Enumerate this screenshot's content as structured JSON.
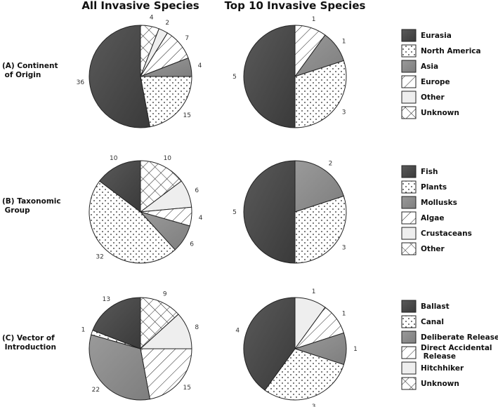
{
  "column_titles": {
    "left": "All Invasive Species",
    "right": "Top 10 Invasive Species"
  },
  "row_labels": [
    [
      "(A) Continent",
      " of Origin"
    ],
    [
      "(B) Taxonomic",
      " Group"
    ],
    [
      "(C) Vector of",
      " Introduction"
    ]
  ],
  "legends": [
    [
      {
        "label": "Eurasia",
        "pattern": "dark"
      },
      {
        "label": "North America",
        "pattern": "dots"
      },
      {
        "label": "Asia",
        "pattern": "gray"
      },
      {
        "label": "Europe",
        "pattern": "hatch"
      },
      {
        "label": "Other",
        "pattern": "light"
      },
      {
        "label": "Unknown",
        "pattern": "cross"
      }
    ],
    [
      {
        "label": "Fish",
        "pattern": "dark"
      },
      {
        "label": "Plants",
        "pattern": "dots"
      },
      {
        "label": "Mollusks",
        "pattern": "gray"
      },
      {
        "label": "Algae",
        "pattern": "hatch"
      },
      {
        "label": "Crustaceans",
        "pattern": "light"
      },
      {
        "label": "Other",
        "pattern": "cross"
      }
    ],
    [
      {
        "label": "Ballast",
        "pattern": "dark"
      },
      {
        "label": "Canal",
        "pattern": "dots"
      },
      {
        "label": "Deliberate Release",
        "pattern": "gray"
      },
      {
        "label": [
          "Direct Accidental",
          " Release"
        ],
        "pattern": "hatch"
      },
      {
        "label": "Hitchhiker",
        "pattern": "light"
      },
      {
        "label": "Unknown",
        "pattern": "cross"
      }
    ]
  ],
  "chart_data": [
    {
      "type": "pie",
      "title": "All Invasive Species",
      "row": "(A) Continent of Origin",
      "slices": [
        {
          "label": "Unknown",
          "value": 4
        },
        {
          "label": "Other",
          "value": 2
        },
        {
          "label": "Europe",
          "value": 7
        },
        {
          "label": "Asia",
          "value": 4
        },
        {
          "label": "North America",
          "value": 15
        },
        {
          "label": "Eurasia",
          "value": 36
        }
      ]
    },
    {
      "type": "pie",
      "title": "Top 10 Invasive Species",
      "row": "(A) Continent of Origin",
      "slices": [
        {
          "label": "Europe",
          "value": 1
        },
        {
          "label": "Asia",
          "value": 1
        },
        {
          "label": "North America",
          "value": 3
        },
        {
          "label": "Eurasia",
          "value": 5
        }
      ]
    },
    {
      "type": "pie",
      "title": "All Invasive Species",
      "row": "(B) Taxonomic Group",
      "slices": [
        {
          "label": "Other",
          "value": 10
        },
        {
          "label": "Crustaceans",
          "value": 6
        },
        {
          "label": "Algae",
          "value": 4
        },
        {
          "label": "Mollusks",
          "value": 6
        },
        {
          "label": "Plants",
          "value": 32
        },
        {
          "label": "Fish",
          "value": 10
        }
      ]
    },
    {
      "type": "pie",
      "title": "Top 10 Invasive Species",
      "row": "(B) Taxonomic Group",
      "slices": [
        {
          "label": "Mollusks",
          "value": 2
        },
        {
          "label": "Plants",
          "value": 3
        },
        {
          "label": "Fish",
          "value": 5
        }
      ]
    },
    {
      "type": "pie",
      "title": "All Invasive Species",
      "row": "(C) Vector of Introduction",
      "slices": [
        {
          "label": "Unknown",
          "value": 9
        },
        {
          "label": "Hitchhiker",
          "value": 8
        },
        {
          "label": "Direct Accidental Release",
          "value": 15
        },
        {
          "label": "Deliberate Release",
          "value": 22
        },
        {
          "label": "Canal",
          "value": 1
        },
        {
          "label": "Ballast",
          "value": 13
        }
      ]
    },
    {
      "type": "pie",
      "title": "Top 10 Invasive Species",
      "row": "(C) Vector of Introduction",
      "slices": [
        {
          "label": "Hitchhiker",
          "value": 1
        },
        {
          "label": "Direct Accidental Release",
          "value": 1
        },
        {
          "label": "Deliberate Release",
          "value": 1
        },
        {
          "label": "Canal",
          "value": 3
        },
        {
          "label": "Ballast",
          "value": 4
        }
      ]
    }
  ]
}
